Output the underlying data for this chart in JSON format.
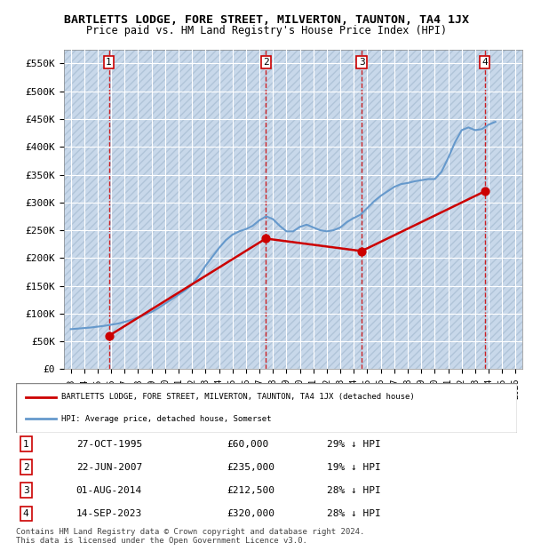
{
  "title": "BARTLETTS LODGE, FORE STREET, MILVERTON, TAUNTON, TA4 1JX",
  "subtitle": "Price paid vs. HM Land Registry's House Price Index (HPI)",
  "background_color": "#ffffff",
  "plot_bg_color": "#dce6f1",
  "hatch_color": "#c0cfe0",
  "grid_color": "#ffffff",
  "ylabel": "",
  "ylim": [
    0,
    575000
  ],
  "yticks": [
    0,
    50000,
    100000,
    150000,
    200000,
    250000,
    300000,
    350000,
    400000,
    450000,
    500000,
    550000
  ],
  "ytick_labels": [
    "£0",
    "£50K",
    "£100K",
    "£150K",
    "£200K",
    "£250K",
    "£300K",
    "£350K",
    "£400K",
    "£450K",
    "£500K",
    "£550K"
  ],
  "sale_dates": [
    1995.83,
    2007.47,
    2014.58,
    2023.71
  ],
  "sale_prices": [
    60000,
    235000,
    212500,
    320000
  ],
  "sale_labels": [
    "1",
    "2",
    "3",
    "4"
  ],
  "sale_color": "#cc0000",
  "hpi_color": "#6699cc",
  "legend_sale_label": "BARTLETTS LODGE, FORE STREET, MILVERTON, TAUNTON, TA4 1JX (detached house)",
  "legend_hpi_label": "HPI: Average price, detached house, Somerset",
  "table_data": [
    [
      "1",
      "27-OCT-1995",
      "£60,000",
      "29% ↓ HPI"
    ],
    [
      "2",
      "22-JUN-2007",
      "£235,000",
      "19% ↓ HPI"
    ],
    [
      "3",
      "01-AUG-2014",
      "£212,500",
      "28% ↓ HPI"
    ],
    [
      "4",
      "14-SEP-2023",
      "£320,000",
      "28% ↓ HPI"
    ]
  ],
  "footer": "Contains HM Land Registry data © Crown copyright and database right 2024.\nThis data is licensed under the Open Government Licence v3.0.",
  "hpi_years": [
    1993,
    1993.5,
    1994,
    1994.5,
    1995,
    1995.5,
    1996,
    1996.5,
    1997,
    1997.5,
    1998,
    1998.5,
    1999,
    1999.5,
    2000,
    2000.5,
    2001,
    2001.5,
    2002,
    2002.5,
    2003,
    2003.5,
    2004,
    2004.5,
    2005,
    2005.5,
    2006,
    2006.5,
    2007,
    2007.5,
    2008,
    2008.5,
    2009,
    2009.5,
    2010,
    2010.5,
    2011,
    2011.5,
    2012,
    2012.5,
    2013,
    2013.5,
    2014,
    2014.5,
    2015,
    2015.5,
    2016,
    2016.5,
    2017,
    2017.5,
    2018,
    2018.5,
    2019,
    2019.5,
    2020,
    2020.5,
    2021,
    2021.5,
    2022,
    2022.5,
    2023,
    2023.5,
    2024,
    2024.5
  ],
  "hpi_values": [
    72000,
    73000,
    74000,
    75000,
    76500,
    78000,
    80000,
    82000,
    85000,
    89000,
    93000,
    98000,
    103000,
    110000,
    118000,
    126000,
    134000,
    142000,
    152000,
    168000,
    186000,
    202000,
    218000,
    232000,
    242000,
    248000,
    252000,
    258000,
    268000,
    275000,
    270000,
    258000,
    248000,
    248000,
    256000,
    260000,
    255000,
    250000,
    248000,
    250000,
    255000,
    265000,
    272000,
    278000,
    290000,
    302000,
    312000,
    320000,
    328000,
    333000,
    335000,
    338000,
    340000,
    342000,
    342000,
    355000,
    380000,
    408000,
    430000,
    435000,
    430000,
    432000,
    440000,
    445000
  ],
  "xlim": [
    1992.5,
    2026.5
  ],
  "xtick_years": [
    1993,
    1994,
    1995,
    1996,
    1997,
    1998,
    1999,
    2000,
    2001,
    2002,
    2003,
    2004,
    2005,
    2006,
    2007,
    2008,
    2009,
    2010,
    2011,
    2012,
    2013,
    2014,
    2015,
    2016,
    2017,
    2018,
    2019,
    2020,
    2021,
    2022,
    2023,
    2024,
    2025,
    2026
  ]
}
